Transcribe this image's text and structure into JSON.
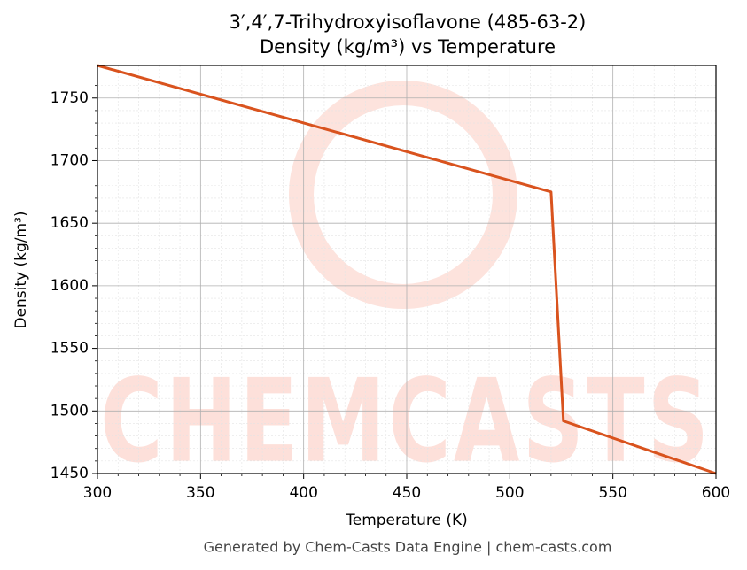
{
  "chart_data": {
    "type": "line",
    "title": "3′,4′,7-Trihydroxyisoflavone (485-63-2)",
    "subtitle": "Density (kg/m³) vs Temperature",
    "x_label": "Temperature (K)",
    "y_label": "Density (kg/m³)",
    "footer": "Generated by Chem-Casts Data Engine | chem-casts.com",
    "watermark": "CHEMCASTS",
    "x": [
      300,
      520,
      526,
      600
    ],
    "series": [
      {
        "name": "Density",
        "color": "#d9531e",
        "values": [
          1776,
          1675,
          1492,
          1450
        ]
      }
    ],
    "xlim": [
      300,
      600
    ],
    "ylim": [
      1450,
      1776
    ],
    "xticks": [
      300,
      350,
      400,
      450,
      500,
      550,
      600
    ],
    "yticks": [
      1450,
      1500,
      1550,
      1600,
      1650,
      1700,
      1750
    ],
    "grid": true,
    "minor_grid": true
  }
}
